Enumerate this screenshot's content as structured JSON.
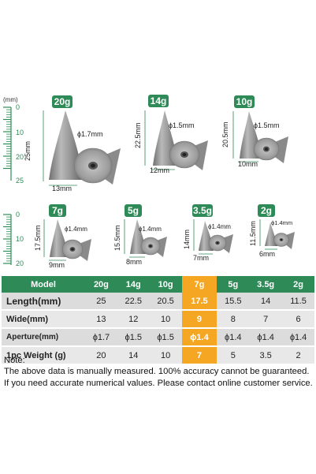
{
  "ruler": {
    "unit": "(mm)",
    "top_labels": [
      "0",
      "10",
      "20",
      "25"
    ],
    "bottom_labels": [
      "0",
      "10",
      "20"
    ]
  },
  "weights": [
    {
      "badge": "20g",
      "length": "25mm",
      "width": "13mm",
      "aperture": "ϕ1.7mm"
    },
    {
      "badge": "14g",
      "length": "22.5mm",
      "width": "12mm",
      "aperture": "ϕ1.5mm"
    },
    {
      "badge": "10g",
      "length": "20.5mm",
      "width": "10mm",
      "aperture": "ϕ1.5mm"
    },
    {
      "badge": "7g",
      "length": "17.5mm",
      "width": "9mm",
      "aperture": "ϕ1.4mm"
    },
    {
      "badge": "5g",
      "length": "15.5mm",
      "width": "8mm",
      "aperture": "ϕ1.4mm"
    },
    {
      "badge": "3.5g",
      "length": "14mm",
      "width": "7mm",
      "aperture": "ϕ1.4mm"
    },
    {
      "badge": "2g",
      "length": "11.5mm",
      "width": "6mm",
      "aperture": "ϕ1.4mm"
    }
  ],
  "table": {
    "header": [
      "Model",
      "20g",
      "14g",
      "10g",
      "7g",
      "5g",
      "3.5g",
      "2g"
    ],
    "rows": [
      [
        "Length(mm)",
        "25",
        "22.5",
        "20.5",
        "17.5",
        "15.5",
        "14",
        "11.5"
      ],
      [
        "Wide(mm)",
        "13",
        "12",
        "10",
        "9",
        "8",
        "7",
        "6"
      ],
      [
        "Aperture(mm)",
        "ϕ1.7",
        "ϕ1.5",
        "ϕ1.5",
        "ϕ1.4",
        "ϕ1.4",
        "ϕ1.4",
        "ϕ1.4"
      ],
      [
        "1pc Weight (g)",
        "20",
        "14",
        "10",
        "7",
        "5",
        "3.5",
        "2"
      ]
    ]
  },
  "notes": [
    "Note:",
    "The above data is manually measured. 100% accuracy cannot be guaranteed.",
    "If you need accurate numerical values. Please contact online customer service."
  ],
  "colors": {
    "green": "#2e8b57",
    "highlight": "#f5a623",
    "metal": "#a9a9a9"
  }
}
